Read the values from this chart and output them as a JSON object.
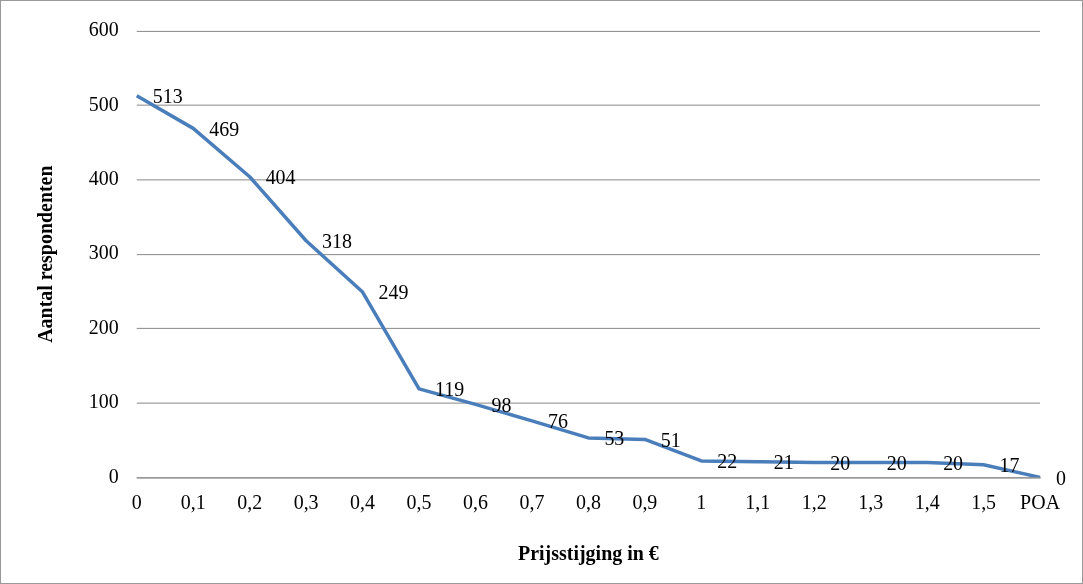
{
  "chart_data": {
    "type": "line",
    "xlabel": "Prijsstijging in €",
    "ylabel": "Aantal respondenten",
    "categories": [
      "0",
      "0,1",
      "0,2",
      "0,3",
      "0,4",
      "0,5",
      "0,6",
      "0,7",
      "0,8",
      "0,9",
      "1",
      "1,1",
      "1,2",
      "1,3",
      "1,4",
      "1,5",
      "POA"
    ],
    "series": [
      {
        "color": "#4a7ebb",
        "values": [
          513,
          469,
          404,
          318,
          249,
          119,
          98,
          76,
          53,
          51,
          22,
          21,
          20,
          20,
          20,
          17,
          0
        ]
      }
    ],
    "ylim": [
      0,
      600
    ],
    "yticks": [
      0,
      100,
      200,
      300,
      400,
      500,
      600
    ],
    "grid": "y",
    "legend": false,
    "marker": "none",
    "line_style": "solid",
    "data_labels": true
  }
}
